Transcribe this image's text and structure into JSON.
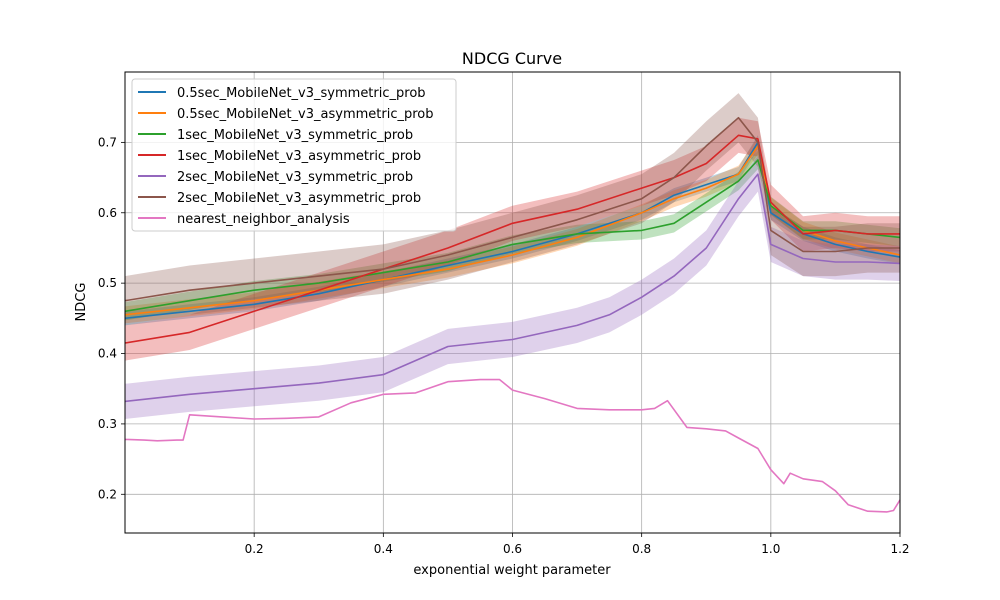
{
  "chart_data": {
    "type": "line",
    "title": "NDCG Curve",
    "xlabel": "exponential weight parameter",
    "ylabel": "NDCG",
    "xlim": [
      0.0,
      1.2
    ],
    "ylim": [
      0.145,
      0.8
    ],
    "xticks": [
      0.2,
      0.4,
      0.6,
      0.8,
      1.0,
      1.2
    ],
    "xtick_labels": [
      "0.2",
      "0.4",
      "0.6",
      "0.8",
      "1.0",
      "1.2"
    ],
    "yticks": [
      0.2,
      0.3,
      0.4,
      0.5,
      0.6,
      0.7
    ],
    "ytick_labels": [
      "0.2",
      "0.3",
      "0.4",
      "0.5",
      "0.6",
      "0.7"
    ],
    "grid": true,
    "legend_position": "top-left",
    "series": [
      {
        "name": "0.5sec_MobileNet_v3_symmetric_prob",
        "color": "#1f77b4",
        "band": 0.01,
        "x": [
          0.0,
          0.1,
          0.2,
          0.3,
          0.4,
          0.5,
          0.6,
          0.7,
          0.8,
          0.85,
          0.9,
          0.95,
          0.98,
          1.0,
          1.05,
          1.1,
          1.15,
          1.2
        ],
        "y": [
          0.45,
          0.46,
          0.47,
          0.485,
          0.505,
          0.525,
          0.545,
          0.57,
          0.6,
          0.625,
          0.64,
          0.655,
          0.7,
          0.6,
          0.57,
          0.555,
          0.545,
          0.537
        ]
      },
      {
        "name": "0.5sec_MobileNet_v3_asymmetric_prob",
        "color": "#ff7f0e",
        "band": 0.012,
        "x": [
          0.0,
          0.1,
          0.2,
          0.3,
          0.4,
          0.5,
          0.6,
          0.7,
          0.8,
          0.85,
          0.9,
          0.95,
          0.98,
          1.0,
          1.05,
          1.1,
          1.15,
          1.2
        ],
        "y": [
          0.455,
          0.465,
          0.475,
          0.49,
          0.505,
          0.52,
          0.54,
          0.565,
          0.6,
          0.62,
          0.635,
          0.655,
          0.695,
          0.61,
          0.575,
          0.56,
          0.55,
          0.54
        ]
      },
      {
        "name": "1sec_MobileNet_v3_symmetric_prob",
        "color": "#2ca02c",
        "band": 0.013,
        "x": [
          0.0,
          0.1,
          0.2,
          0.3,
          0.4,
          0.5,
          0.6,
          0.7,
          0.8,
          0.85,
          0.9,
          0.95,
          0.98,
          1.0,
          1.05,
          1.1,
          1.15,
          1.2
        ],
        "y": [
          0.46,
          0.475,
          0.49,
          0.5,
          0.515,
          0.53,
          0.555,
          0.57,
          0.575,
          0.585,
          0.615,
          0.645,
          0.675,
          0.61,
          0.575,
          0.575,
          0.57,
          0.565
        ]
      },
      {
        "name": "1sec_MobileNet_v3_asymmetric_prob",
        "color": "#d62728",
        "band": 0.025,
        "x": [
          0.0,
          0.1,
          0.2,
          0.3,
          0.4,
          0.5,
          0.6,
          0.7,
          0.8,
          0.85,
          0.9,
          0.95,
          0.98,
          1.0,
          1.05,
          1.1,
          1.15,
          1.2
        ],
        "y": [
          0.415,
          0.43,
          0.46,
          0.49,
          0.52,
          0.55,
          0.585,
          0.605,
          0.635,
          0.65,
          0.67,
          0.71,
          0.705,
          0.615,
          0.57,
          0.575,
          0.57,
          0.57
        ]
      },
      {
        "name": "2sec_MobileNet_v3_symmetric_prob",
        "color": "#9467bd",
        "band": 0.025,
        "x": [
          0.0,
          0.1,
          0.2,
          0.3,
          0.4,
          0.5,
          0.6,
          0.7,
          0.75,
          0.8,
          0.85,
          0.9,
          0.95,
          0.98,
          1.0,
          1.05,
          1.1,
          1.15,
          1.2
        ],
        "y": [
          0.332,
          0.342,
          0.35,
          0.358,
          0.37,
          0.41,
          0.42,
          0.44,
          0.455,
          0.48,
          0.51,
          0.55,
          0.62,
          0.655,
          0.555,
          0.535,
          0.53,
          0.53,
          0.528
        ]
      },
      {
        "name": "2sec_MobileNet_v3_asymmetric_prob",
        "color": "#8c564b",
        "band": 0.035,
        "x": [
          0.0,
          0.1,
          0.2,
          0.3,
          0.4,
          0.5,
          0.6,
          0.7,
          0.8,
          0.85,
          0.9,
          0.95,
          0.98,
          1.0,
          1.05,
          1.1,
          1.15,
          1.2
        ],
        "y": [
          0.475,
          0.49,
          0.5,
          0.51,
          0.52,
          0.54,
          0.565,
          0.59,
          0.62,
          0.65,
          0.695,
          0.735,
          0.7,
          0.575,
          0.545,
          0.545,
          0.55,
          0.55
        ]
      },
      {
        "name": "nearest_neighbor_analysis",
        "color": "#e377c2",
        "band": 0,
        "x": [
          0.0,
          0.03,
          0.05,
          0.08,
          0.09,
          0.1,
          0.15,
          0.2,
          0.25,
          0.3,
          0.35,
          0.4,
          0.45,
          0.5,
          0.55,
          0.58,
          0.6,
          0.65,
          0.7,
          0.75,
          0.8,
          0.82,
          0.84,
          0.87,
          0.9,
          0.93,
          0.95,
          0.98,
          1.0,
          1.02,
          1.03,
          1.05,
          1.08,
          1.1,
          1.12,
          1.15,
          1.18,
          1.19,
          1.2
        ],
        "y": [
          0.278,
          0.277,
          0.276,
          0.277,
          0.277,
          0.313,
          0.31,
          0.307,
          0.308,
          0.31,
          0.33,
          0.342,
          0.344,
          0.36,
          0.363,
          0.363,
          0.348,
          0.336,
          0.322,
          0.32,
          0.32,
          0.322,
          0.333,
          0.295,
          0.293,
          0.29,
          0.28,
          0.265,
          0.235,
          0.215,
          0.23,
          0.222,
          0.218,
          0.205,
          0.185,
          0.176,
          0.175,
          0.177,
          0.192
        ]
      }
    ]
  }
}
